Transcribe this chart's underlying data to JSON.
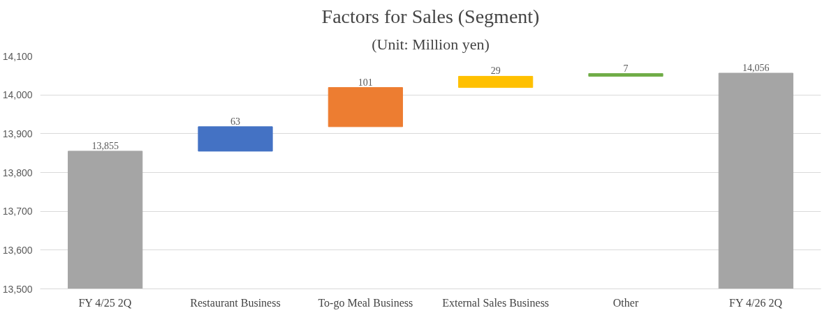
{
  "chart_data": {
    "type": "bar",
    "title": "Factors for Sales (Segment)",
    "subtitle": "(Unit: Million yen)",
    "categories": [
      "FY 4/25 2Q",
      "Restaurant Business",
      "To-go Meal Business",
      "External Sales Business",
      "Other",
      "FY 4/26 2Q"
    ],
    "values": [
      13855,
      63,
      101,
      29,
      7,
      14056
    ],
    "base": [
      null,
      13855,
      13918,
      14019,
      14048,
      null
    ],
    "colors": [
      "#a5a5a5",
      "#4472c4",
      "#ed7d31",
      "#ffc000",
      "#70ad47",
      "#a5a5a5"
    ],
    "value_labels": [
      "13,855",
      "63",
      "101",
      "29",
      "7",
      "14,056"
    ],
    "ylim": [
      13500,
      14100
    ],
    "yticks": [
      {
        "value": 13500,
        "label": "13,500"
      },
      {
        "value": 13600,
        "label": "13,600"
      },
      {
        "value": 13700,
        "label": "13,700"
      },
      {
        "value": 13800,
        "label": "13,800"
      },
      {
        "value": 13900,
        "label": "13,900"
      },
      {
        "value": 14000,
        "label": "14,000"
      },
      {
        "value": 14100,
        "label": "14,100"
      }
    ],
    "grid": "y"
  }
}
